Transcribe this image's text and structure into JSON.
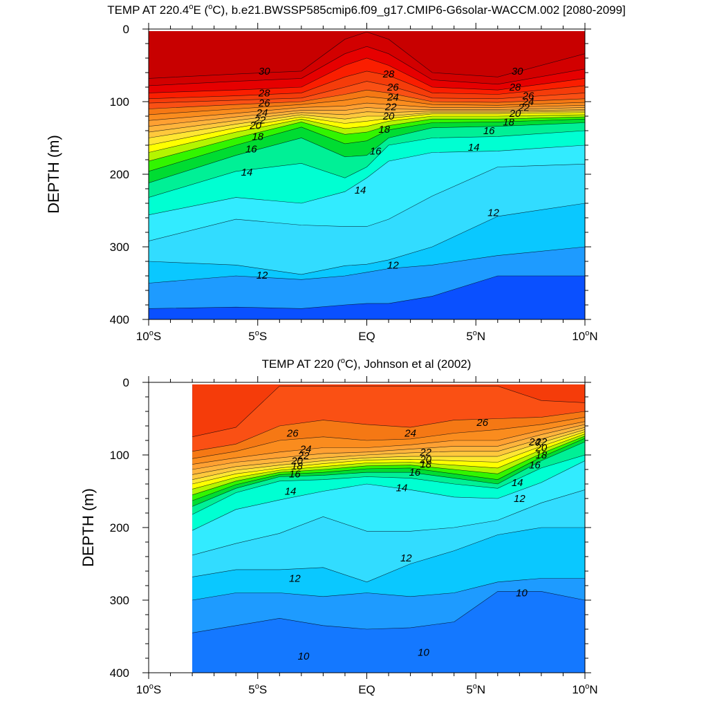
{
  "chart_data": [
    {
      "type": "contour",
      "title": "TEMP AT 220.4°E (°C), b.e21.BWSSP585cmip6.f09_g17.CMIP6-G6solar-WACCM.002 [2080-2099]",
      "title_parts": {
        "pre": "TEMP AT 220.4",
        "deg": "o",
        "post": "E (",
        "deg2": "o",
        "post2": "C), b.e21.BWSSP585cmip6.f09_g17.CMIP6-G6solar-WACCM.002 [2080-2099]"
      },
      "xlabel": "",
      "ylabel": "DEPTH (m)",
      "xlim": [
        -10,
        10
      ],
      "ylim": [
        400,
        0
      ],
      "x_ticks": [
        {
          "value": -10,
          "label": "10",
          "deg": "o",
          "suffix": "S"
        },
        {
          "value": -5,
          "label": "5",
          "deg": "o",
          "suffix": "S"
        },
        {
          "value": 0,
          "label": "EQ",
          "deg": "",
          "suffix": ""
        },
        {
          "value": 5,
          "label": "5",
          "deg": "o",
          "suffix": "N"
        },
        {
          "value": 10,
          "label": "10",
          "deg": "o",
          "suffix": "N"
        }
      ],
      "y_ticks": [
        0,
        100,
        200,
        300,
        400
      ],
      "data_x_range": [
        -10,
        10
      ],
      "contour_interval": 1,
      "lat_profile": [
        -10,
        -6,
        -3,
        -1,
        0,
        1,
        3,
        6,
        10
      ],
      "isotherm_depths": {
        "31": [
          68,
          62,
          58,
          14,
          4,
          14,
          60,
          66,
          34
        ],
        "30": [
          78,
          72,
          68,
          34,
          24,
          34,
          70,
          76,
          55
        ],
        "29": [
          88,
          84,
          80,
          50,
          40,
          50,
          80,
          84,
          68
        ],
        "28": [
          96,
          92,
          88,
          66,
          58,
          64,
          88,
          90,
          78
        ],
        "27": [
          102,
          98,
          95,
          80,
          72,
          78,
          95,
          96,
          88
        ],
        "26": [
          110,
          104,
          100,
          90,
          84,
          88,
          100,
          101,
          96
        ],
        "25": [
          118,
          110,
          104,
          98,
          93,
          96,
          104,
          105,
          101
        ],
        "24": [
          126,
          116,
          108,
          106,
          102,
          104,
          108,
          108,
          105
        ],
        "23": [
          134,
          121,
          112,
          112,
          108,
          110,
          111,
          111,
          108
        ],
        "22": [
          142,
          126,
          115,
          118,
          114,
          115,
          113,
          113,
          111
        ],
        "21": [
          150,
          131,
          118,
          124,
          120,
          120,
          115,
          115,
          113
        ],
        "20": [
          160,
          136,
          121,
          130,
          127,
          123,
          117,
          117,
          115
        ],
        "19": [
          170,
          142,
          124,
          137,
          134,
          127,
          120,
          120,
          118
        ],
        "18": [
          182,
          150,
          128,
          145,
          142,
          133,
          124,
          124,
          121
        ],
        "17": [
          196,
          160,
          135,
          158,
          154,
          139,
          129,
          128,
          124
        ],
        "16": [
          212,
          174,
          150,
          176,
          174,
          150,
          136,
          134,
          129
        ],
        "15": [
          232,
          196,
          185,
          205,
          190,
          160,
          150,
          148,
          140
        ],
        "14": [
          256,
          232,
          240,
          224,
          205,
          182,
          170,
          168,
          160
        ],
        "13": [
          292,
          262,
          270,
          272,
          272,
          262,
          230,
          190,
          186
        ],
        "12": [
          320,
          325,
          338,
          326,
          324,
          318,
          300,
          258,
          240
        ],
        "11": [
          350,
          340,
          345,
          340,
          335,
          330,
          325,
          312,
          300
        ],
        "10": [
          385,
          383,
          385,
          380,
          378,
          378,
          368,
          340,
          340
        ]
      },
      "contour_labels": [
        {
          "x": -4.7,
          "y": 58,
          "text": "30"
        },
        {
          "x": 6.9,
          "y": 58,
          "text": "30"
        },
        {
          "x": -4.7,
          "y": 88,
          "text": "28"
        },
        {
          "x": 1.0,
          "y": 62,
          "text": "28"
        },
        {
          "x": 6.8,
          "y": 80,
          "text": "28"
        },
        {
          "x": -4.7,
          "y": 102,
          "text": "26"
        },
        {
          "x": 1.2,
          "y": 80,
          "text": "26"
        },
        {
          "x": 7.4,
          "y": 92,
          "text": "26"
        },
        {
          "x": -4.8,
          "y": 115,
          "text": "24"
        },
        {
          "x": 1.2,
          "y": 94,
          "text": "24"
        },
        {
          "x": 7.4,
          "y": 100,
          "text": "24"
        },
        {
          "x": -4.9,
          "y": 125,
          "text": "22"
        },
        {
          "x": 1.1,
          "y": 107,
          "text": "22"
        },
        {
          "x": 7.2,
          "y": 108,
          "text": "22"
        },
        {
          "x": -5.1,
          "y": 133,
          "text": "20"
        },
        {
          "x": 1.0,
          "y": 120,
          "text": "20"
        },
        {
          "x": 6.8,
          "y": 116,
          "text": "20"
        },
        {
          "x": -5.0,
          "y": 148,
          "text": "18"
        },
        {
          "x": 0.8,
          "y": 138,
          "text": "18"
        },
        {
          "x": 6.5,
          "y": 128,
          "text": "18"
        },
        {
          "x": -5.3,
          "y": 165,
          "text": "16"
        },
        {
          "x": 0.4,
          "y": 168,
          "text": "16"
        },
        {
          "x": 5.6,
          "y": 140,
          "text": "16"
        },
        {
          "x": -5.5,
          "y": 197,
          "text": "14"
        },
        {
          "x": -0.3,
          "y": 222,
          "text": "14"
        },
        {
          "x": 4.9,
          "y": 163,
          "text": "14"
        },
        {
          "x": -4.8,
          "y": 339,
          "text": "12"
        },
        {
          "x": 1.2,
          "y": 325,
          "text": "12"
        },
        {
          "x": 5.8,
          "y": 253,
          "text": "12"
        }
      ]
    },
    {
      "type": "contour",
      "title": "TEMP AT 220 (°C), Johnson et al (2002)",
      "title_parts": {
        "pre": "TEMP AT 220 (",
        "deg": "o",
        "post": "C), Johnson et al (2002)"
      },
      "xlabel": "",
      "ylabel": "DEPTH (m)",
      "xlim": [
        -10,
        10
      ],
      "ylim": [
        400,
        0
      ],
      "x_ticks": [
        {
          "value": -10,
          "label": "10",
          "deg": "o",
          "suffix": "S"
        },
        {
          "value": -5,
          "label": "5",
          "deg": "o",
          "suffix": "S"
        },
        {
          "value": 0,
          "label": "EQ",
          "deg": "",
          "suffix": ""
        },
        {
          "value": 5,
          "label": "5",
          "deg": "o",
          "suffix": "N"
        },
        {
          "value": 10,
          "label": "10",
          "deg": "o",
          "suffix": "N"
        }
      ],
      "y_ticks": [
        0,
        100,
        200,
        300,
        400
      ],
      "data_x_range": [
        -8,
        10
      ],
      "contour_interval": 1,
      "lat_profile": [
        -8,
        -6,
        -4,
        -2,
        0,
        2,
        4,
        6,
        8,
        10
      ],
      "isotherm_depths": {
        "27": [
          75,
          62,
          5,
          5,
          5,
          5,
          5,
          5,
          25,
          28
        ],
        "26": [
          95,
          85,
          60,
          52,
          58,
          62,
          52,
          50,
          48,
          40
        ],
        "25": [
          105,
          95,
          80,
          75,
          80,
          78,
          70,
          65,
          58,
          48
        ],
        "24": [
          113,
          104,
          96,
          90,
          90,
          86,
          80,
          80,
          66,
          54
        ],
        "23": [
          120,
          110,
          104,
          98,
          96,
          92,
          88,
          88,
          72,
          58
        ],
        "22": [
          127,
          116,
          110,
          104,
          100,
          97,
          95,
          95,
          78,
          62
        ],
        "21": [
          134,
          121,
          114,
          108,
          104,
          102,
          102,
          102,
          83,
          65
        ],
        "20": [
          140,
          126,
          118,
          112,
          107,
          106,
          108,
          110,
          88,
          68
        ],
        "19": [
          147,
          131,
          121,
          116,
          111,
          110,
          114,
          118,
          93,
          71
        ],
        "18": [
          155,
          136,
          124,
          120,
          115,
          114,
          120,
          126,
          98,
          74
        ],
        "17": [
          163,
          141,
          127,
          124,
          119,
          118,
          126,
          134,
          103,
          77
        ],
        "16": [
          171,
          146,
          130,
          128,
          124,
          124,
          132,
          140,
          108,
          82
        ],
        "15": [
          182,
          152,
          136,
          134,
          130,
          132,
          140,
          146,
          118,
          100
        ],
        "14": [
          204,
          175,
          162,
          150,
          140,
          148,
          158,
          160,
          138,
          108
        ],
        "13": [
          238,
          222,
          208,
          185,
          205,
          205,
          200,
          190,
          166,
          148
        ],
        "12": [
          268,
          258,
          258,
          255,
          275,
          250,
          232,
          210,
          200,
          200
        ],
        "11": [
          300,
          290,
          290,
          295,
          290,
          295,
          290,
          275,
          270,
          270
        ],
        "10": [
          345,
          335,
          325,
          335,
          340,
          338,
          330,
          288,
          288,
          300
        ],
        "9": [
          400,
          400,
          400,
          400,
          400,
          400,
          400,
          400,
          400,
          400
        ]
      },
      "contour_labels": [
        {
          "x": -3.4,
          "y": 70,
          "text": "26"
        },
        {
          "x": 5.3,
          "y": 55,
          "text": "26"
        },
        {
          "x": 2.0,
          "y": 70,
          "text": "24"
        },
        {
          "x": -2.8,
          "y": 92,
          "text": "24"
        },
        {
          "x": 7.7,
          "y": 82,
          "text": "24"
        },
        {
          "x": 2.7,
          "y": 96,
          "text": "22"
        },
        {
          "x": -2.9,
          "y": 101,
          "text": "22"
        },
        {
          "x": 8.0,
          "y": 82,
          "text": "22"
        },
        {
          "x": 2.7,
          "y": 106,
          "text": "20"
        },
        {
          "x": -3.2,
          "y": 108,
          "text": "20"
        },
        {
          "x": 8.0,
          "y": 90,
          "text": "20"
        },
        {
          "x": 2.7,
          "y": 113,
          "text": "18"
        },
        {
          "x": -3.2,
          "y": 115,
          "text": "18"
        },
        {
          "x": 8.0,
          "y": 100,
          "text": "18"
        },
        {
          "x": 2.2,
          "y": 124,
          "text": "16"
        },
        {
          "x": -3.3,
          "y": 126,
          "text": "16"
        },
        {
          "x": 7.7,
          "y": 114,
          "text": "16"
        },
        {
          "x": 1.6,
          "y": 145,
          "text": "14"
        },
        {
          "x": -3.5,
          "y": 150,
          "text": "14"
        },
        {
          "x": 6.9,
          "y": 138,
          "text": "14"
        },
        {
          "x": -3.3,
          "y": 270,
          "text": "12"
        },
        {
          "x": 1.8,
          "y": 242,
          "text": "12"
        },
        {
          "x": 7.0,
          "y": 160,
          "text": "12"
        },
        {
          "x": -2.9,
          "y": 377,
          "text": "10"
        },
        {
          "x": 2.6,
          "y": 372,
          "text": "10"
        },
        {
          "x": 7.1,
          "y": 290,
          "text": "10"
        }
      ]
    }
  ]
}
